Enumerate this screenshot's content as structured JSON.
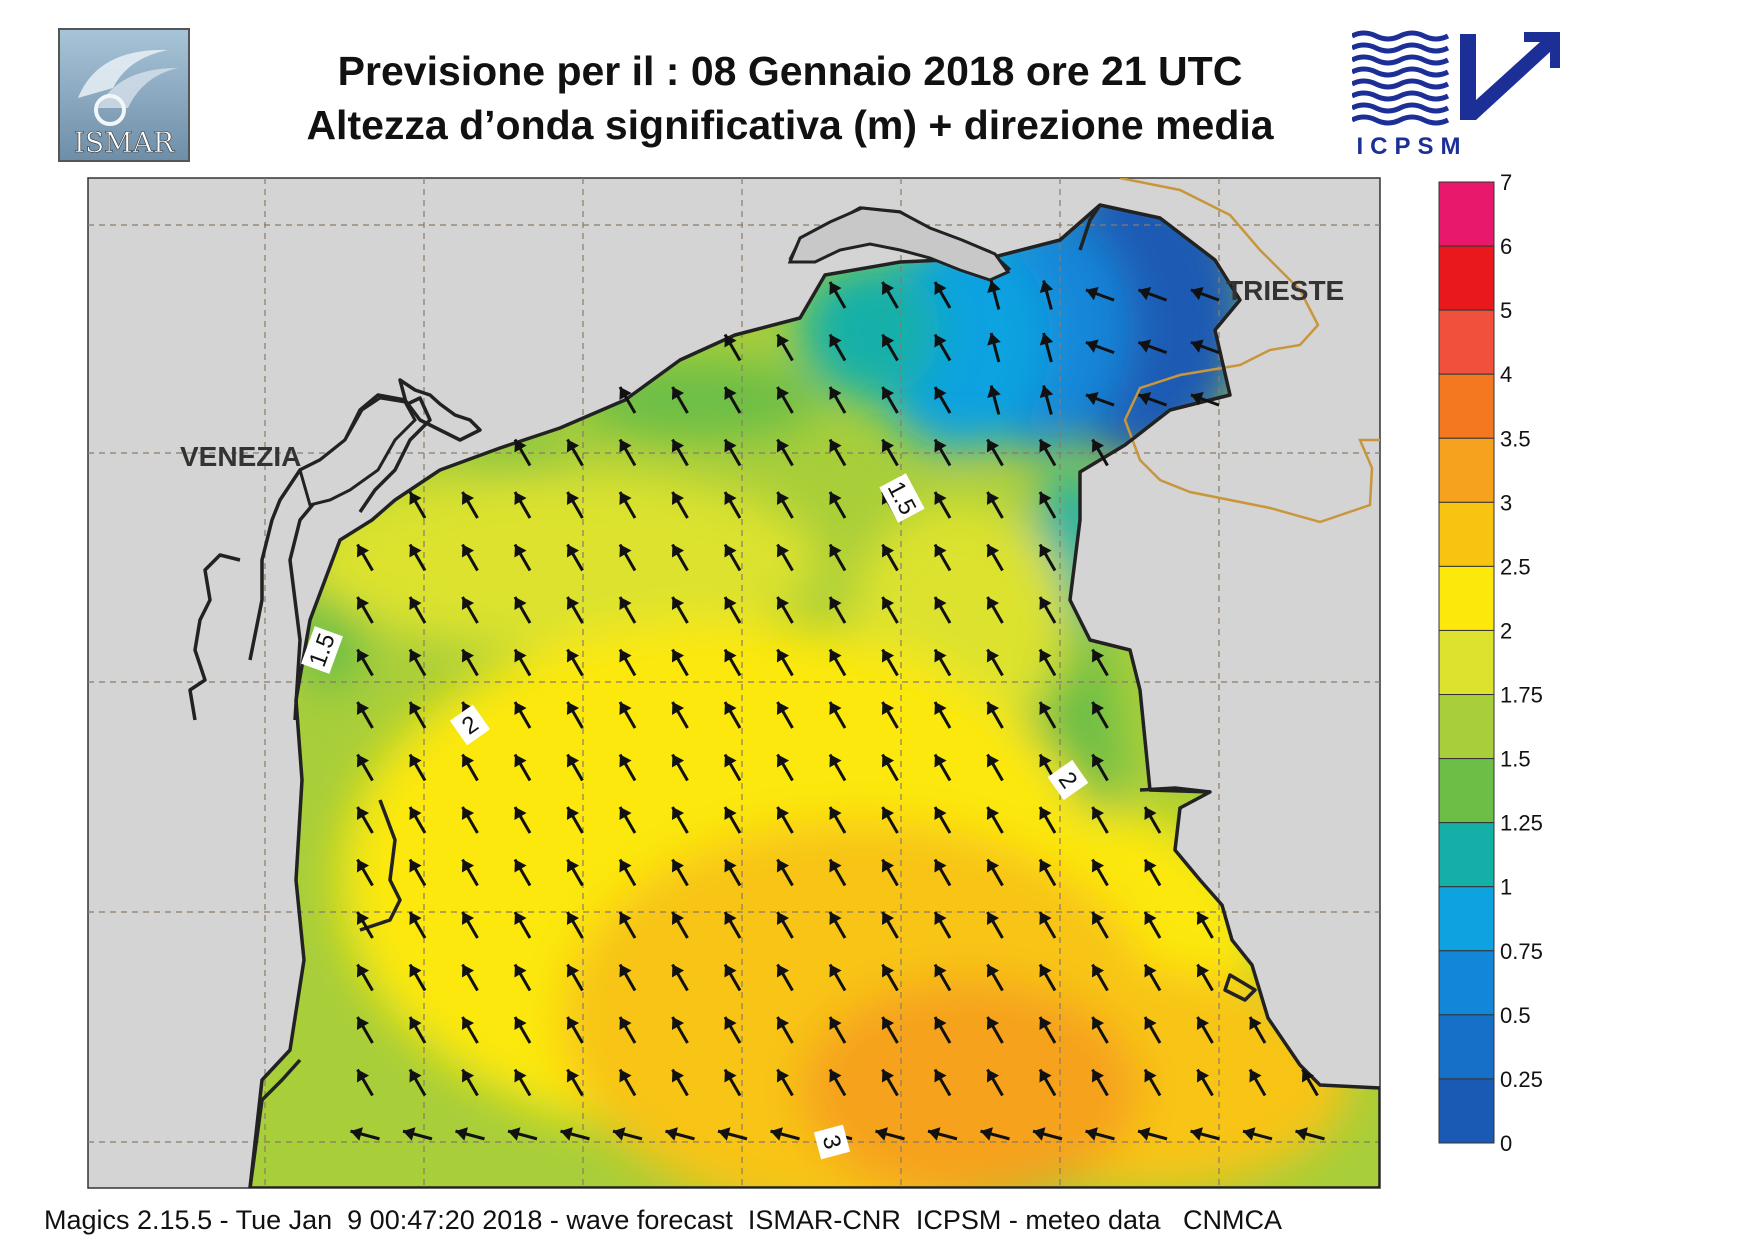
{
  "header": {
    "title_line1": "Previsione per il  :  08  Gennaio  2018   ore 21 UTC",
    "title_line2": "Altezza d’onda significativa (m) + direzione media",
    "logo_left_text": "ISMAR",
    "logo_right_text": "ICPSM"
  },
  "map": {
    "places": [
      {
        "name": "VENEZIA"
      },
      {
        "name": "TRIESTE"
      }
    ],
    "contour_labels": [
      "1.5",
      "1.5",
      "2",
      "2",
      "3"
    ],
    "colors": {
      "land": "#d3d3d3",
      "border": "#c8963c",
      "coast": "#222222"
    },
    "mean_direction": "north-west"
  },
  "legend": {
    "labels": [
      "7",
      "6",
      "5",
      "4",
      "3.5",
      "3",
      "2.5",
      "2",
      "1.75",
      "1.5",
      "1.25",
      "1",
      "0.75",
      "0.5",
      "0.25",
      "0"
    ],
    "colors": [
      "#e8186c",
      "#e8181c",
      "#f0503c",
      "#f47820",
      "#f6a21e",
      "#f8c412",
      "#fce80a",
      "#dce22e",
      "#a8ce3a",
      "#6cbe46",
      "#14b0a8",
      "#0ea2e0",
      "#1286d8",
      "#1670c8",
      "#1a5ab4"
    ]
  },
  "footer": {
    "text": "Magics 2.15.5 - Tue Jan  9 00:47:20 2018 - wave forecast  ISMAR-CNR  ICPSM - meteo data   CNMCA"
  }
}
